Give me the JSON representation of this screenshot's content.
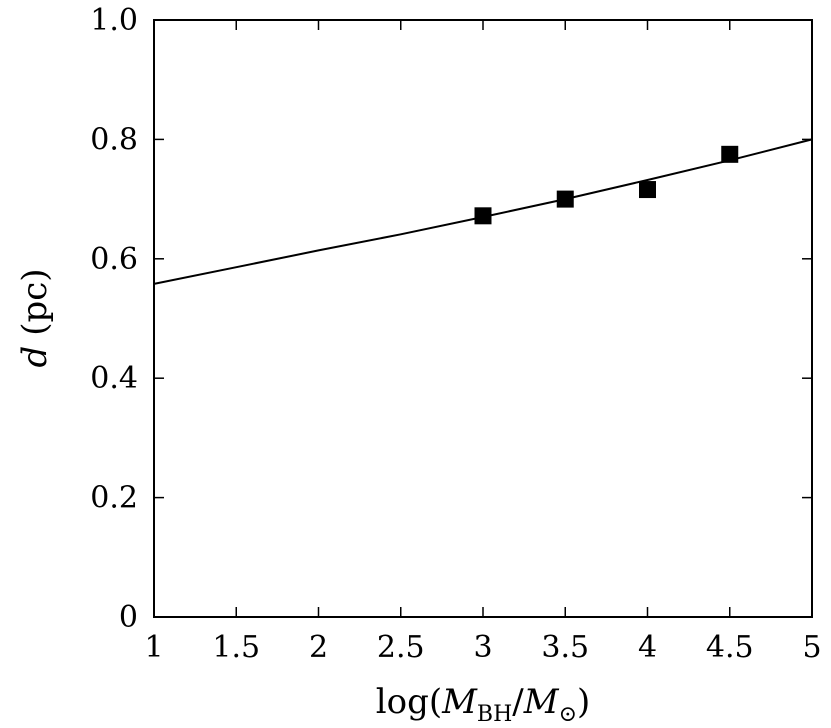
{
  "chart_data": {
    "type": "scatter",
    "xlabel": {
      "prefix": "log(",
      "main": "M",
      "sub": "BH",
      "slash": "/",
      "main2": "M",
      "sub2": "⊙",
      "suffix": ")"
    },
    "ylabel": {
      "var": "d",
      "unit": "(pc)"
    },
    "xlim": [
      1,
      5
    ],
    "ylim": [
      0,
      1.0
    ],
    "xticks": [
      1,
      1.5,
      2,
      2.5,
      3,
      3.5,
      4,
      4.5,
      5
    ],
    "xtick_labels": [
      "1",
      "1.5",
      "2",
      "2.5",
      "3",
      "3.5",
      "4",
      "4.5",
      "5"
    ],
    "yticks": [
      0,
      0.2,
      0.4,
      0.6,
      0.8,
      1.0
    ],
    "ytick_labels": [
      "0",
      "0.2",
      "0.4",
      "0.6",
      "0.8",
      "1.0"
    ],
    "grid": false,
    "series": [
      {
        "kind": "markers",
        "marker": "square",
        "color": "#000000",
        "x": [
          3,
          3.5,
          4,
          4.5
        ],
        "y": [
          0.672,
          0.7,
          0.716,
          0.775
        ]
      },
      {
        "kind": "line",
        "color": "#000000",
        "x": [
          1.0,
          1.5,
          2.0,
          2.5,
          3.0,
          3.5,
          4.0,
          4.5,
          5.0
        ],
        "y": [
          0.558,
          0.586,
          0.614,
          0.641,
          0.67,
          0.7,
          0.732,
          0.765,
          0.8
        ]
      }
    ]
  }
}
